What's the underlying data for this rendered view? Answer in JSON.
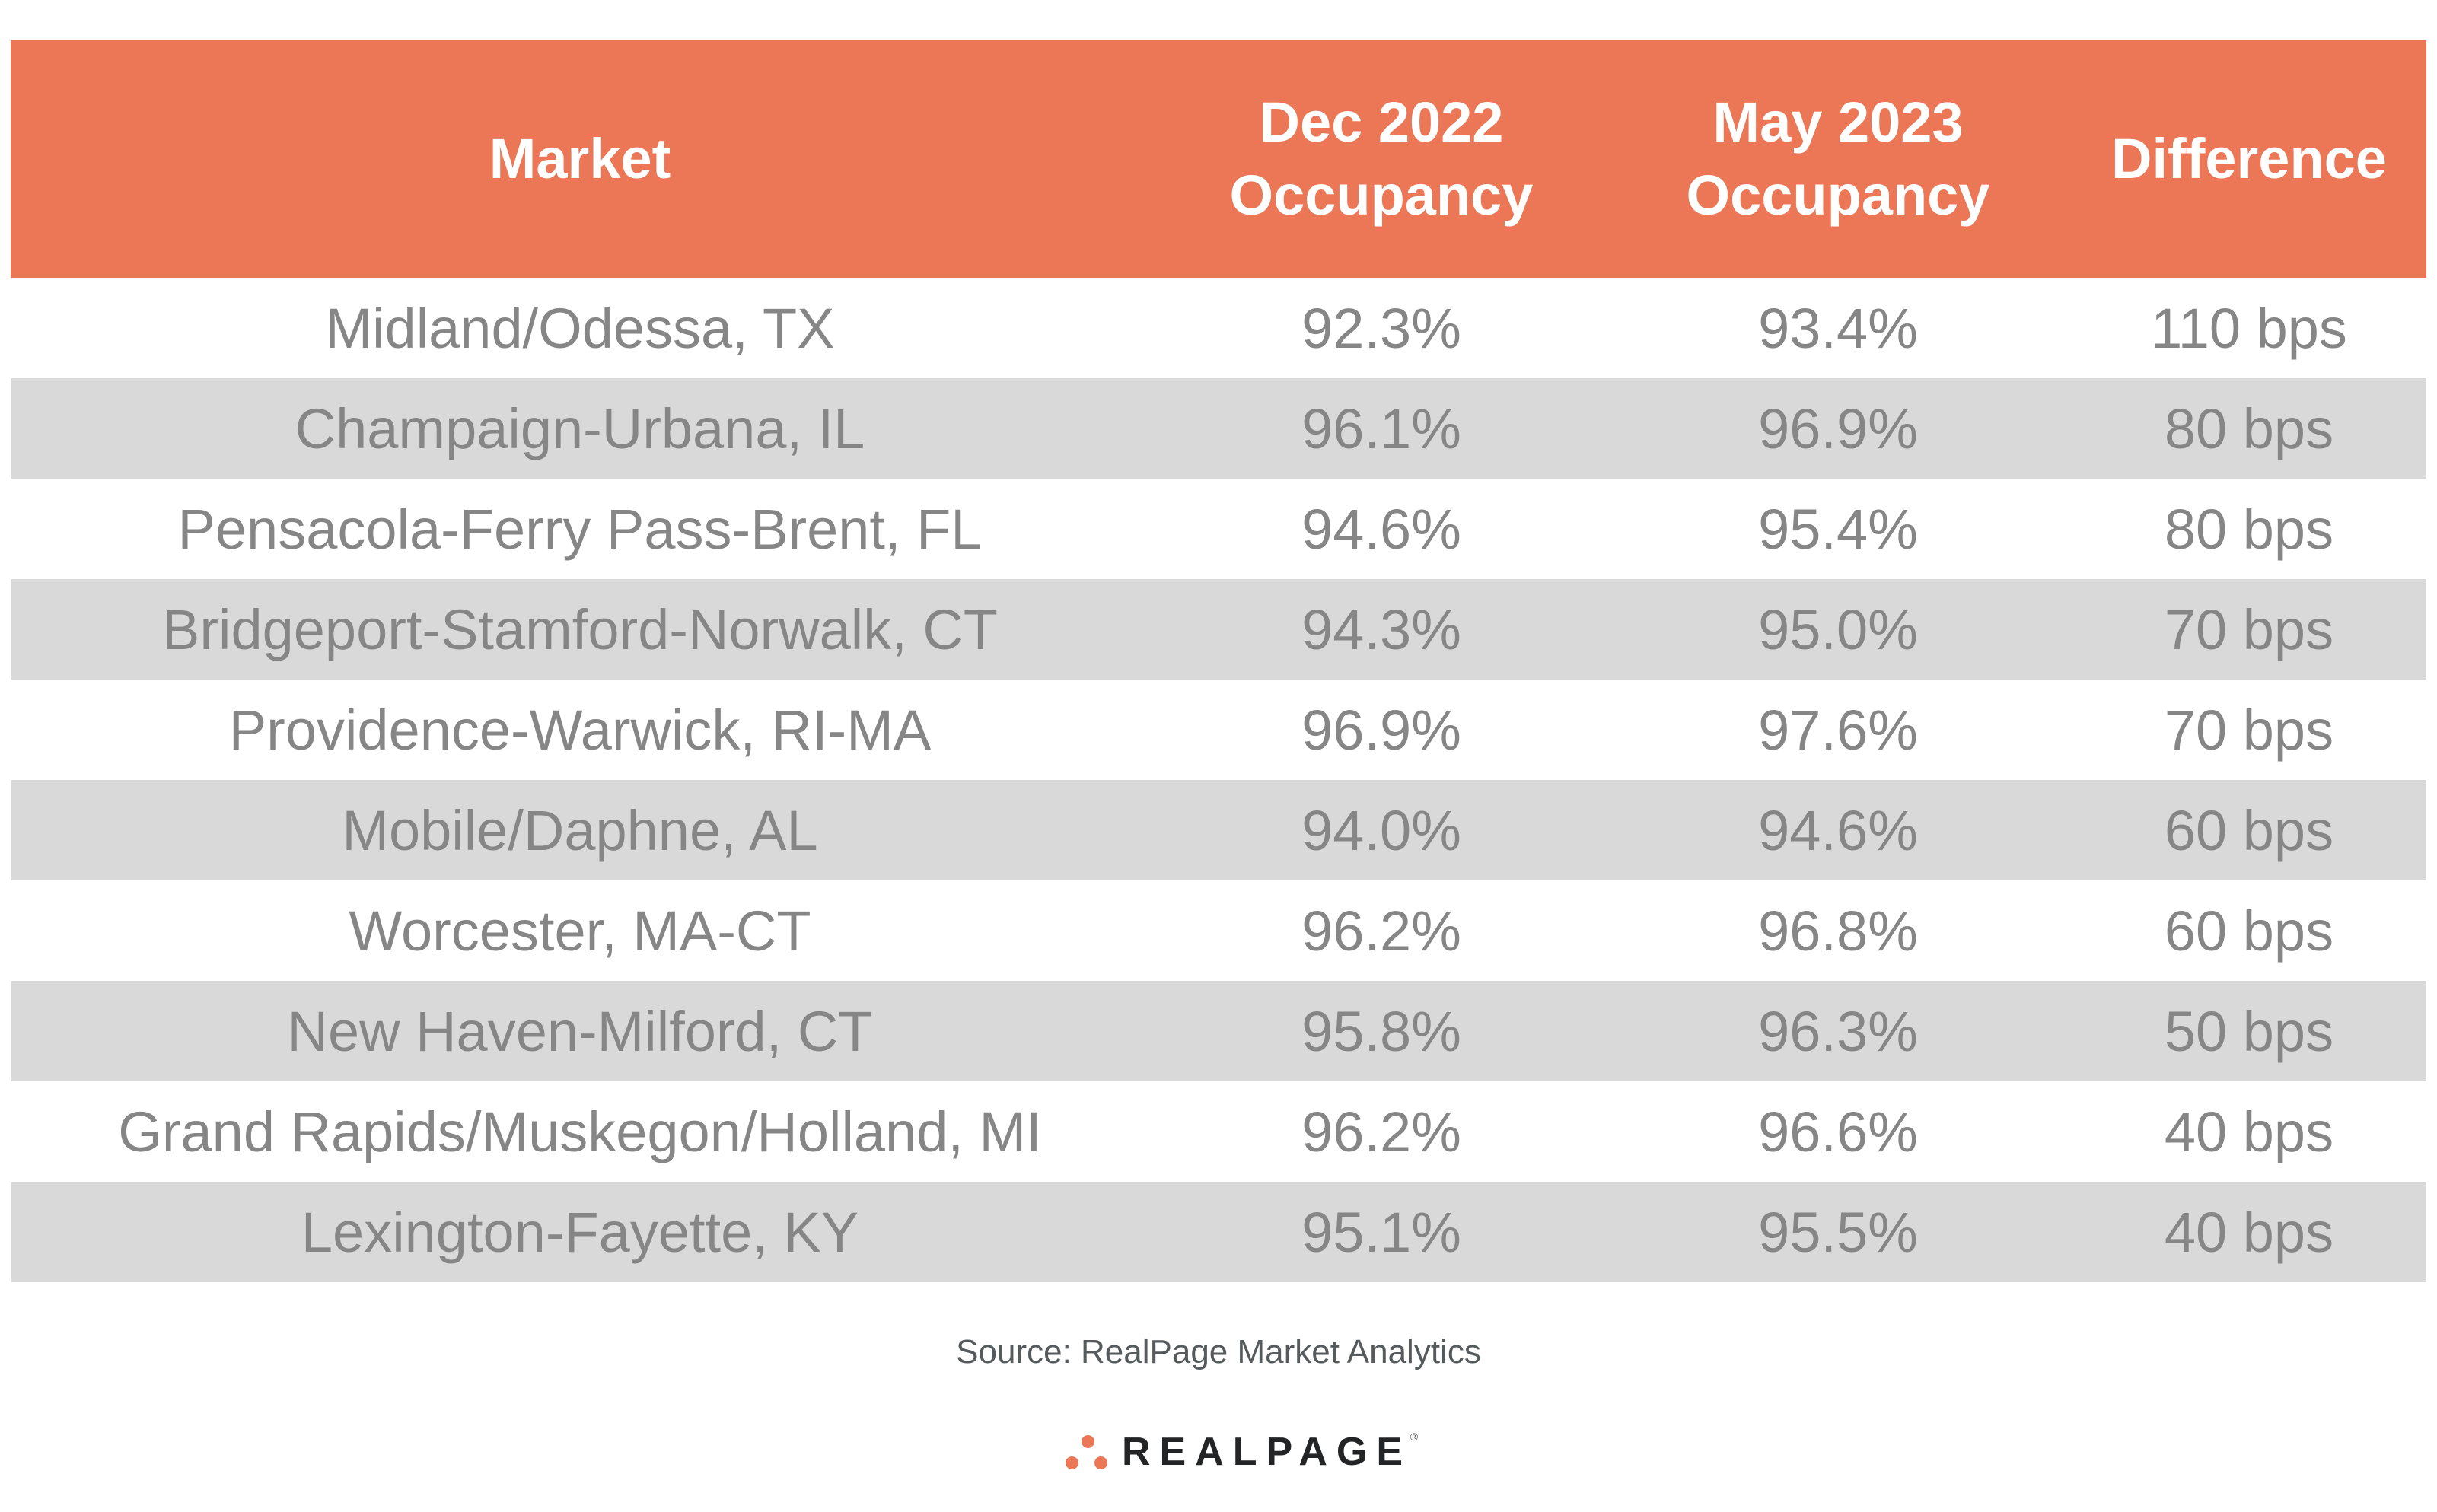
{
  "chart_data": {
    "type": "table",
    "title": "",
    "columns": [
      "Market",
      "Dec 2022 Occupancy",
      "May 2023 Occupancy",
      "Difference"
    ],
    "header_lines": [
      [
        "Market"
      ],
      [
        "Dec 2022",
        "Occupancy"
      ],
      [
        "May 2023",
        "Occupancy"
      ],
      [
        "Difference"
      ]
    ],
    "rows": [
      {
        "market": "Midland/Odessa, TX",
        "dec_2022": "92.3%",
        "may_2023": "93.4%",
        "difference": "110 bps"
      },
      {
        "market": "Champaign-Urbana, IL",
        "dec_2022": "96.1%",
        "may_2023": "96.9%",
        "difference": "80 bps"
      },
      {
        "market": "Pensacola-Ferry Pass-Brent, FL",
        "dec_2022": "94.6%",
        "may_2023": "95.4%",
        "difference": "80 bps"
      },
      {
        "market": "Bridgeport-Stamford-Norwalk, CT",
        "dec_2022": "94.3%",
        "may_2023": "95.0%",
        "difference": "70 bps"
      },
      {
        "market": "Providence-Warwick, RI-MA",
        "dec_2022": "96.9%",
        "may_2023": "97.6%",
        "difference": "70 bps"
      },
      {
        "market": "Mobile/Daphne, AL",
        "dec_2022": "94.0%",
        "may_2023": "94.6%",
        "difference": "60 bps"
      },
      {
        "market": "Worcester, MA-CT",
        "dec_2022": "96.2%",
        "may_2023": "96.8%",
        "difference": "60 bps"
      },
      {
        "market": "New Haven-Milford, CT",
        "dec_2022": "95.8%",
        "may_2023": "96.3%",
        "difference": "50 bps"
      },
      {
        "market": "Grand Rapids/Muskegon/Holland, MI",
        "dec_2022": "96.2%",
        "may_2023": "96.6%",
        "difference": "40 bps"
      },
      {
        "market": "Lexington-Fayette, KY",
        "dec_2022": "95.1%",
        "may_2023": "95.5%",
        "difference": "40 bps"
      }
    ],
    "values_numeric": {
      "dec_2022_pct": [
        92.3,
        96.1,
        94.6,
        94.3,
        96.9,
        94.0,
        96.2,
        95.8,
        96.2,
        95.1
      ],
      "may_2023_pct": [
        93.4,
        96.9,
        95.4,
        95.0,
        97.6,
        94.6,
        96.8,
        96.3,
        96.6,
        95.5
      ],
      "difference_bps": [
        110,
        80,
        80,
        70,
        70,
        60,
        60,
        50,
        40,
        40
      ]
    }
  },
  "footer": {
    "source": "Source: RealPage Market Analytics",
    "logo_text": "REALPAGE",
    "logo_registered": "®"
  },
  "colors": {
    "header_bg": "#EC7756",
    "header_text": "#FFFFFF",
    "row_alt_bg": "#D9D9D9",
    "body_text": "#868686",
    "source_text": "#555A5C",
    "logo_dots": "#EC7756",
    "logo_text": "#222426"
  }
}
